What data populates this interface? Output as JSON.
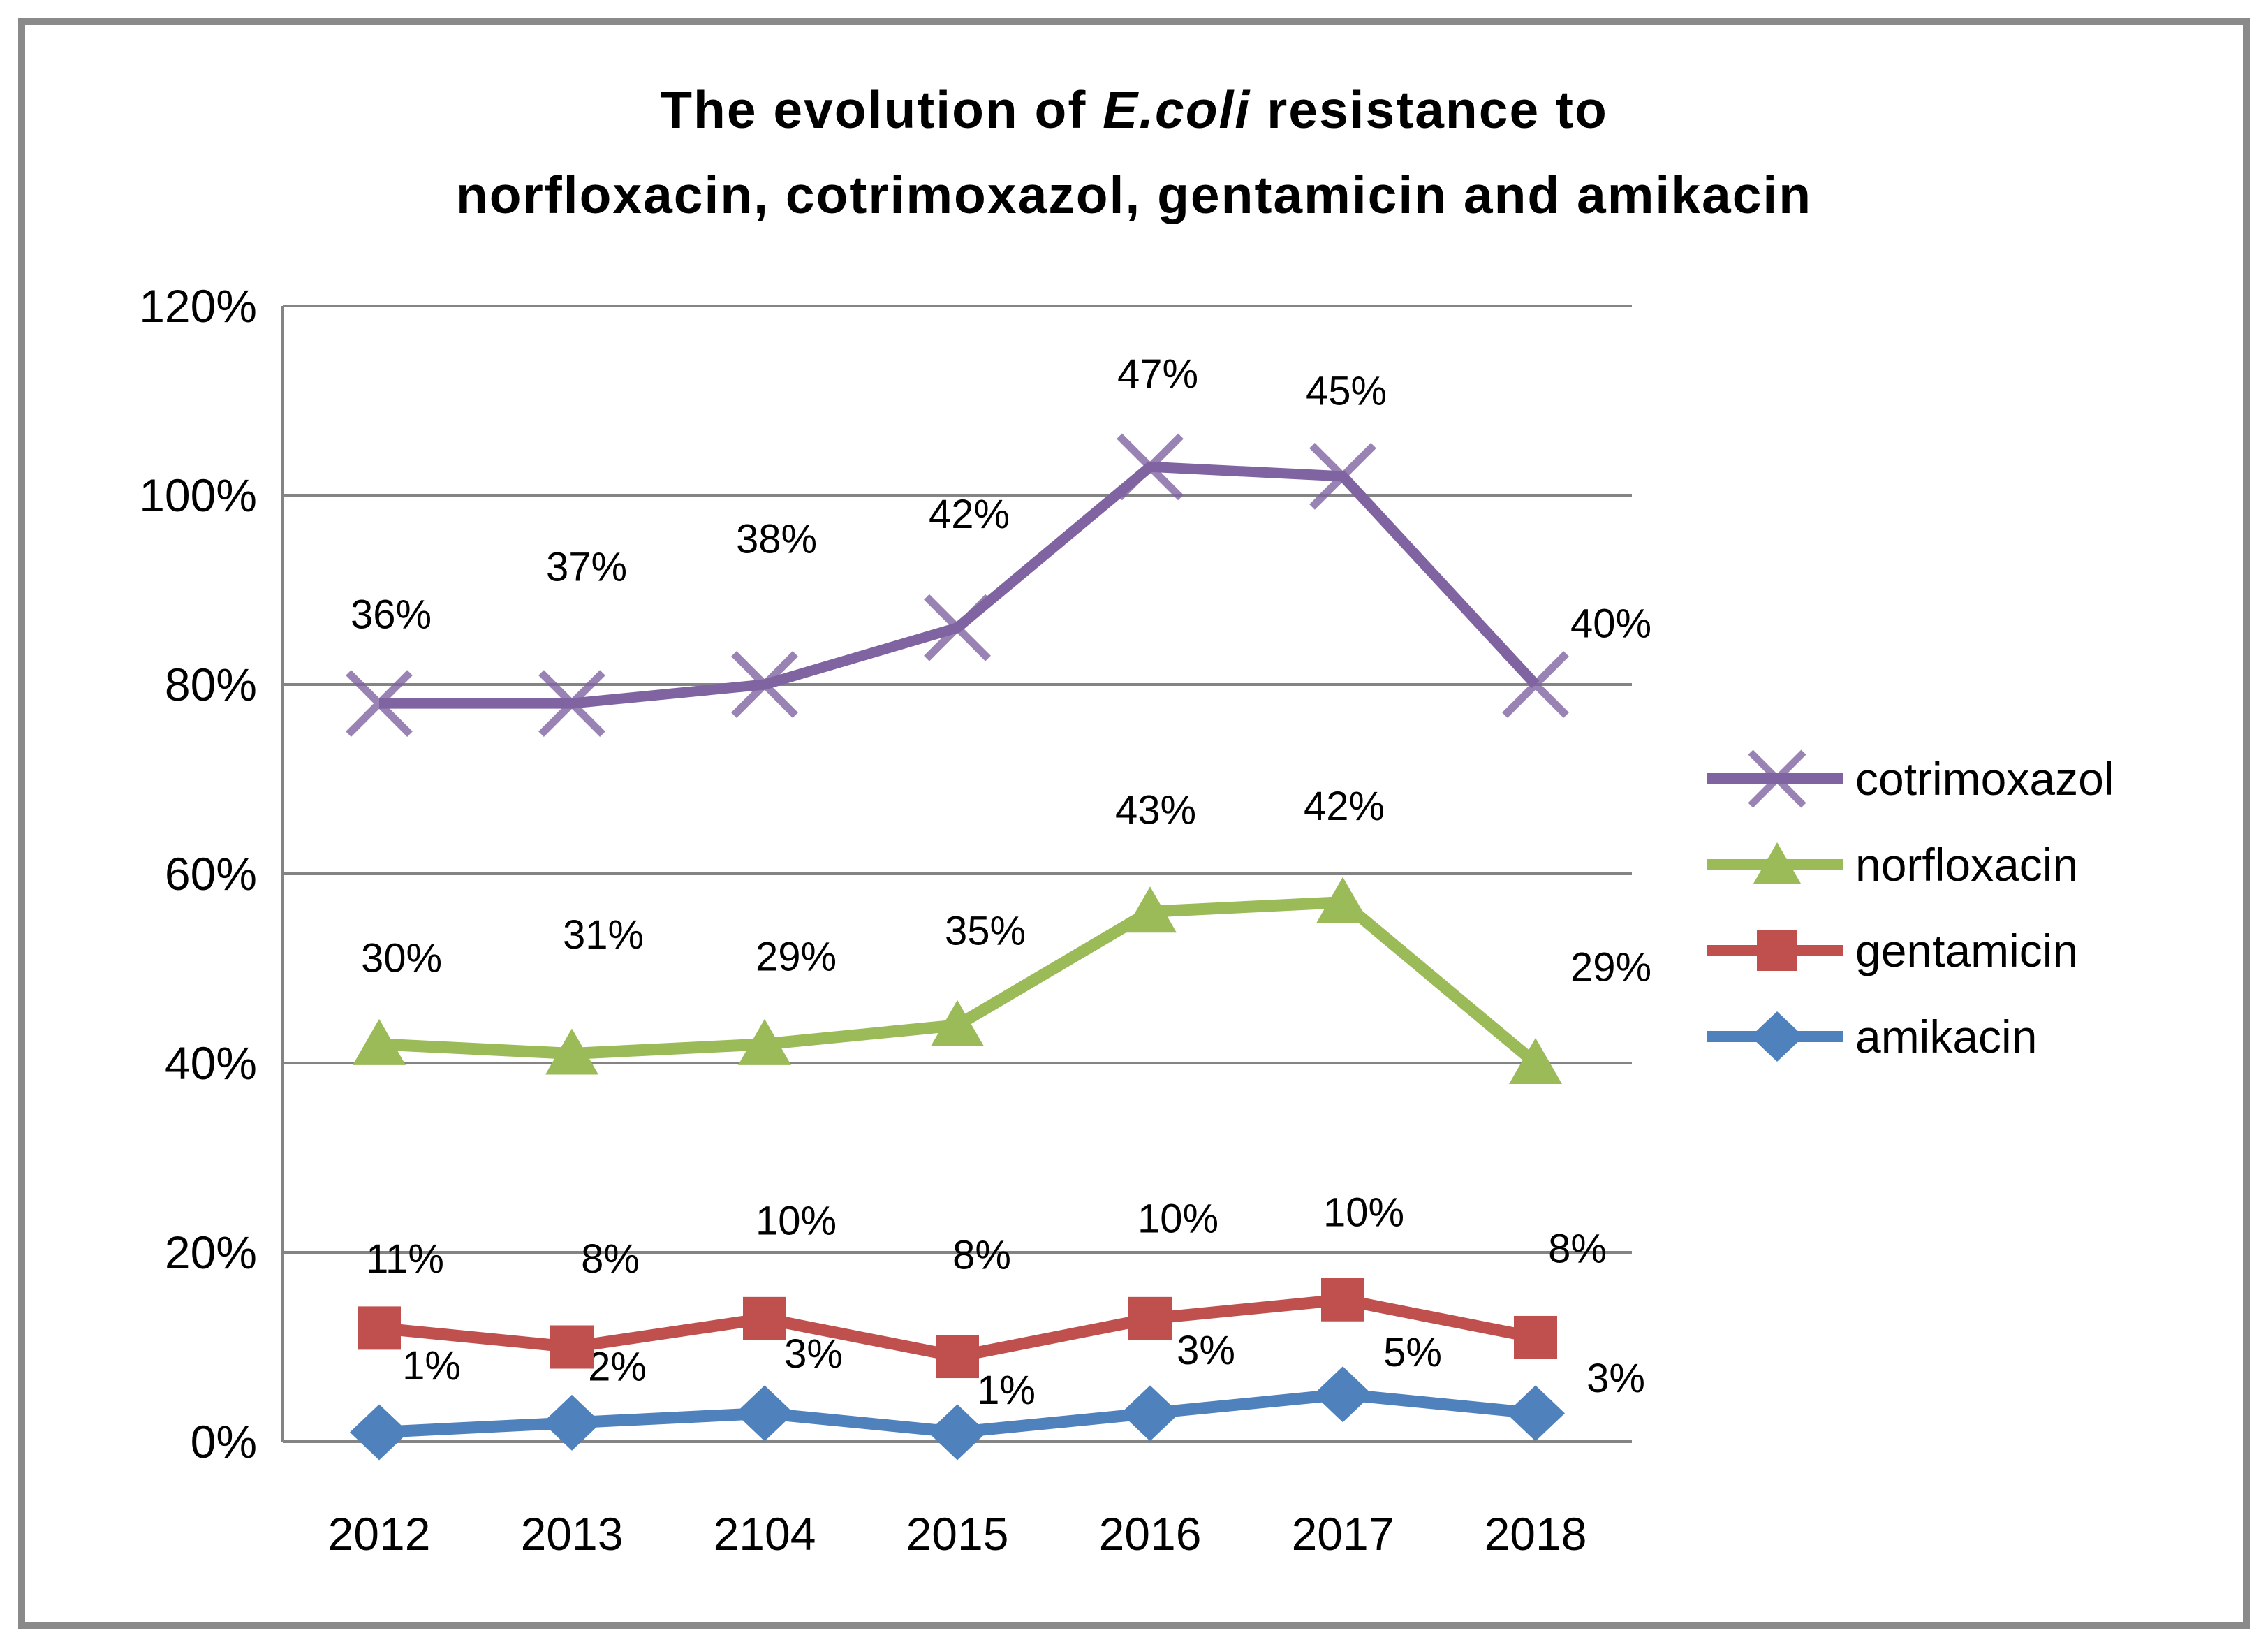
{
  "title": {
    "part1": "The evolution of ",
    "italic": "E.coli",
    "part2": " resistance to",
    "line2": "norfloxacin, cotrimoxazol, gentamicin and amikacin"
  },
  "chart_data": {
    "type": "line",
    "stacked": true,
    "title": "The evolution of E.coli resistance to norfloxacin, cotrimoxazol, gentamicin and amikacin",
    "xlabel": "",
    "ylabel": "",
    "categories": [
      "2012",
      "2013",
      "2104",
      "2015",
      "2016",
      "2017",
      "2018"
    ],
    "y_ticks": [
      "120%",
      "100%",
      "80%",
      "60%",
      "40%",
      "20%",
      "0%"
    ],
    "y_axis": {
      "min": 0,
      "max": 120,
      "step": 20,
      "unit": "%"
    },
    "grid": true,
    "legend_position": "right",
    "series": [
      {
        "name": "cotrimoxazol",
        "color": "#8064A2",
        "marker": "x",
        "values": [
          36,
          37,
          38,
          42,
          47,
          45,
          40
        ],
        "labels": [
          "36%",
          "37%",
          "38%",
          "42%",
          "47%",
          "45%",
          "40%"
        ]
      },
      {
        "name": "norfloxacin",
        "color": "#9BBB59",
        "marker": "triangle",
        "values": [
          30,
          31,
          29,
          35,
          43,
          42,
          29
        ],
        "labels": [
          "30%",
          "31%",
          "29%",
          "35%",
          "43%",
          "42%",
          "29%"
        ]
      },
      {
        "name": "gentamicin",
        "color": "#C0504D",
        "marker": "square",
        "values": [
          11,
          8,
          10,
          8,
          10,
          10,
          8
        ],
        "labels": [
          "11%",
          "8%",
          "10%",
          "8%",
          "10%",
          "10%",
          "8%"
        ]
      },
      {
        "name": "amikacin",
        "color": "#4F81BD",
        "marker": "diamond",
        "values": [
          1,
          2,
          3,
          1,
          3,
          5,
          3
        ],
        "labels": [
          "1%",
          "2%",
          "3%",
          "1%",
          "3%",
          "5%",
          "3%"
        ]
      }
    ],
    "grid_color": "#848484",
    "label_color": "#000000"
  }
}
